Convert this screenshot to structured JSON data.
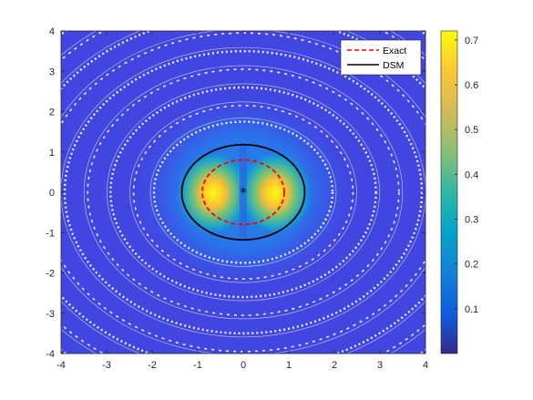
{
  "chart_data": {
    "type": "heatmap",
    "title": "",
    "xlabel": "",
    "ylabel": "",
    "xlim": [
      -4,
      4
    ],
    "ylim": [
      -4,
      4
    ],
    "x_ticks": [
      "-4",
      "-3",
      "-2",
      "-1",
      "0",
      "1",
      "2",
      "3",
      "4"
    ],
    "y_ticks": [
      "-4",
      "-3",
      "-2",
      "-1",
      "0",
      "1",
      "2",
      "3",
      "4"
    ],
    "colorbar": {
      "range": [
        0,
        0.72
      ],
      "ticks": [
        "0.1",
        "0.2",
        "0.3",
        "0.4",
        "0.5",
        "0.6",
        "0.7"
      ],
      "colormap": "parula"
    },
    "source_marker": {
      "x": 0,
      "y": 0,
      "symbol": "*"
    },
    "series": [
      {
        "name": "Exact",
        "shape": "ellipse",
        "cx": 0,
        "cy": 0,
        "rx": 0.9,
        "ry": 0.8,
        "color": "#ff0000",
        "style": "dashed"
      },
      {
        "name": "DSM",
        "shape": "ellipse",
        "cx": 0,
        "cy": 0,
        "rx": 1.35,
        "ry": 1.18,
        "color": "#000000",
        "style": "solid"
      }
    ],
    "legend": {
      "placement": "top-right",
      "entries": [
        "Exact",
        "DSM"
      ]
    }
  }
}
